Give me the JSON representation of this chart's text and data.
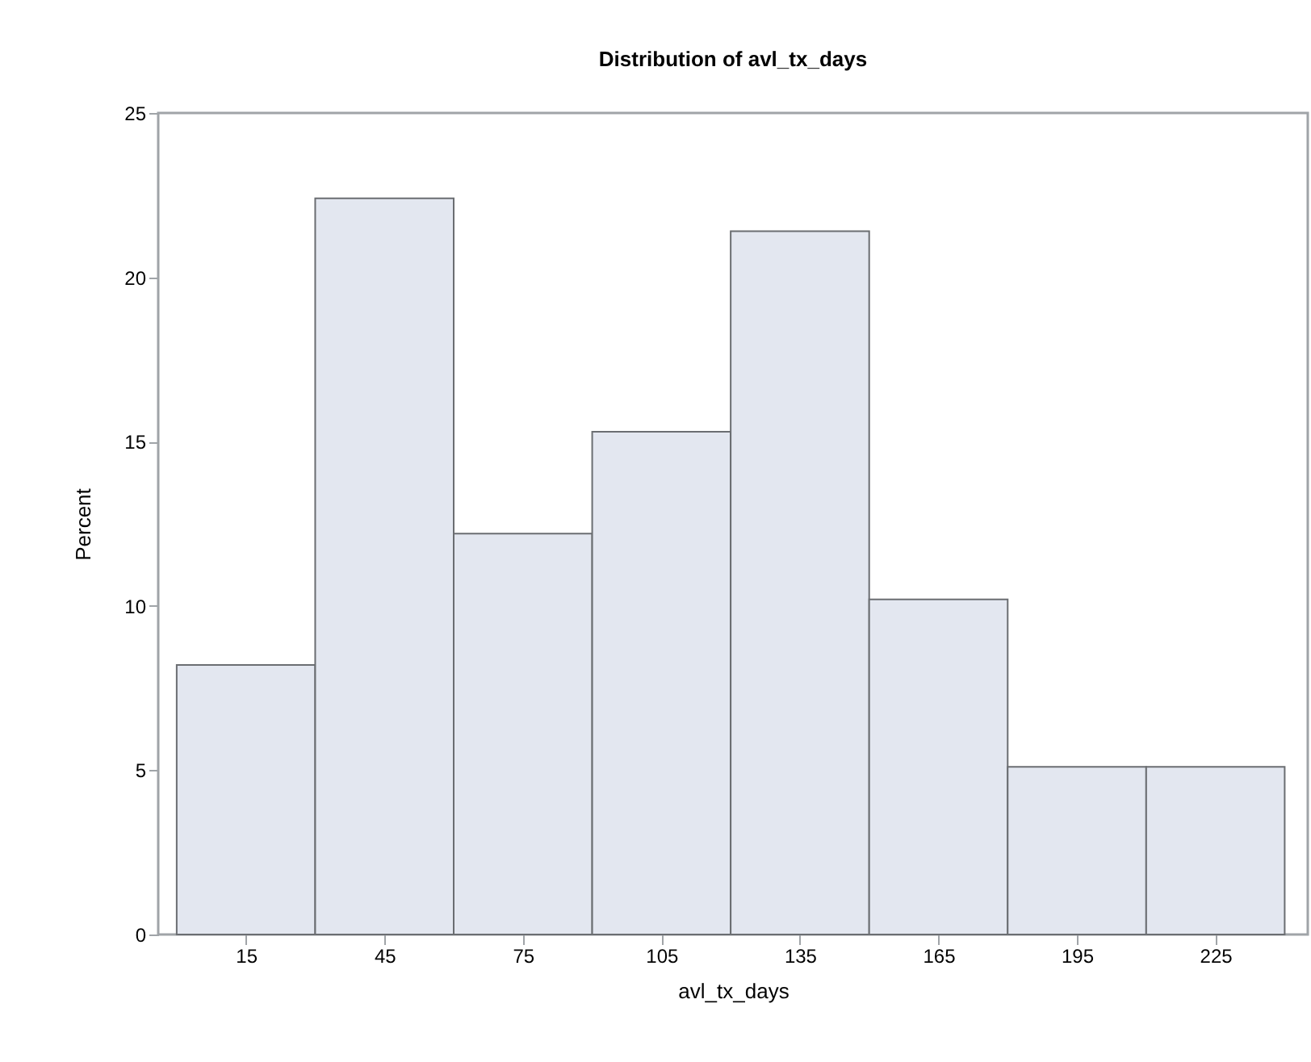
{
  "chart_data": {
    "type": "histogram",
    "title": "Distribution of avl_tx_days",
    "xlabel": "avl_tx_days",
    "ylabel": "Percent",
    "bins": [
      0,
      30,
      60,
      90,
      120,
      150,
      180,
      210,
      240
    ],
    "values": [
      8.2,
      22.4,
      12.2,
      15.3,
      21.4,
      10.2,
      5.1,
      5.1
    ],
    "color": "#e3e7f0",
    "xlim": [
      -4,
      245
    ],
    "xticks": [
      15,
      45,
      75,
      105,
      135,
      165,
      195,
      225
    ],
    "ylim": [
      0,
      25
    ],
    "yticks": [
      0,
      5,
      10,
      15,
      20,
      25
    ],
    "grid": false
  }
}
